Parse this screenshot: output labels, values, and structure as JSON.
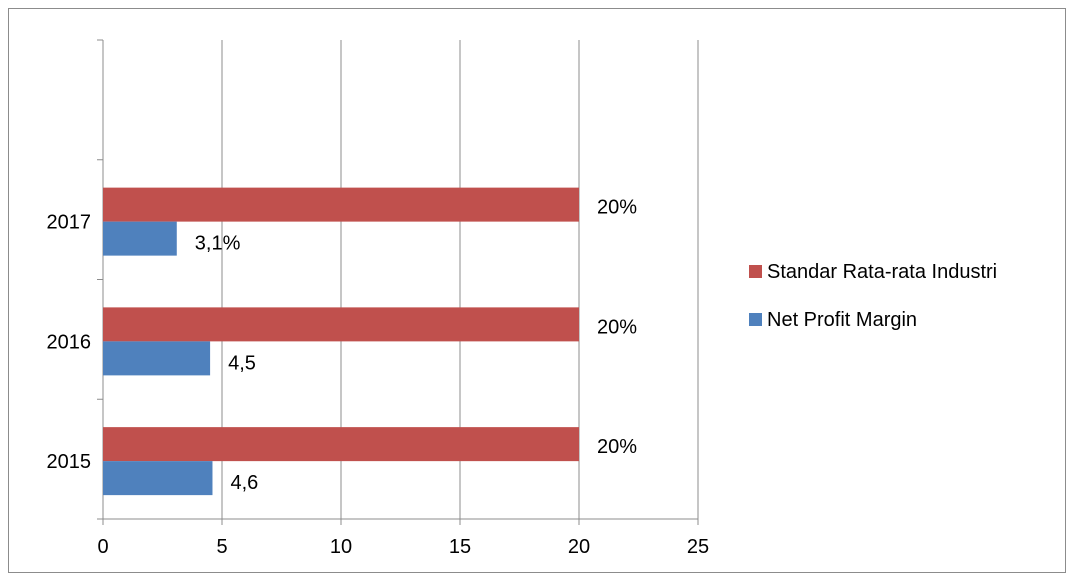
{
  "chart_data": {
    "type": "bar",
    "orientation": "horizontal",
    "categories": [
      "2015",
      "2016",
      "2017"
    ],
    "series": [
      {
        "name": "Net Profit Margin",
        "color": "#4f81bd",
        "values": [
          4.6,
          4.5,
          3.1
        ],
        "data_labels": [
          "4,6",
          "4,5",
          "3,1%"
        ]
      },
      {
        "name": "Standar Rata-rata Industri",
        "color": "#c0504d",
        "values": [
          20,
          20,
          20
        ],
        "data_labels": [
          "20%",
          "20%",
          "20%"
        ]
      }
    ],
    "xlim": [
      0,
      25
    ],
    "x_ticks": [
      "0",
      "5",
      "10",
      "15",
      "20",
      "25"
    ],
    "grid": "vertical",
    "legend_position": "right",
    "legend_order": [
      "Standar Rata-rata Industri",
      "Net Profit Margin"
    ],
    "title": "",
    "xlabel": "",
    "ylabel": ""
  }
}
